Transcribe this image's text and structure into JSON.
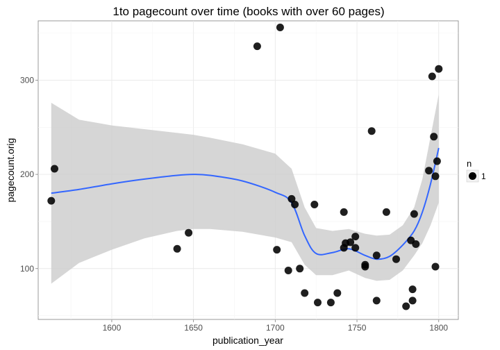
{
  "chart_data": {
    "type": "scatter",
    "title": "1to pagecount over time (books with over 60 pages)",
    "xlabel": "publication_year",
    "ylabel": "pagecount.orig",
    "xlim": [
      1555,
      1812
    ],
    "ylim": [
      46,
      363
    ],
    "x_ticks": [
      1600,
      1650,
      1700,
      1750,
      1800
    ],
    "y_ticks": [
      100,
      200,
      300
    ],
    "grid": true,
    "legend": {
      "title": "n",
      "entries": [
        "1"
      ],
      "position": "right"
    },
    "colors": {
      "point": "#000000",
      "smooth_line": "#3366FF",
      "ribbon": "#cccccc",
      "panel_border": "#7f7f7f",
      "grid": "#ececec"
    },
    "series": [
      {
        "x": [
          1563,
          1565,
          1640,
          1647,
          1689,
          1701,
          1703,
          1708,
          1710,
          1712,
          1715,
          1718,
          1724,
          1726,
          1734,
          1738,
          1742,
          1742,
          1743,
          1746,
          1749,
          1749,
          1755,
          1755,
          1759,
          1762,
          1762,
          1768,
          1774,
          1780,
          1783,
          1784,
          1784,
          1785,
          1786,
          1794,
          1796,
          1797,
          1798,
          1798,
          1799,
          1800
        ],
        "y": [
          172,
          206,
          121,
          138,
          336,
          120,
          356,
          98,
          174,
          168,
          100,
          74,
          168,
          64,
          64,
          74,
          160,
          122,
          127,
          128,
          134,
          122,
          104,
          102,
          246,
          114,
          66,
          160,
          110,
          60,
          130,
          66,
          78,
          158,
          126,
          204,
          304,
          240,
          102,
          198,
          214,
          312
        ]
      }
    ],
    "smooth": {
      "x": [
        1563,
        1580,
        1600,
        1620,
        1640,
        1650,
        1660,
        1680,
        1700,
        1710,
        1718,
        1725,
        1735,
        1745,
        1755,
        1762,
        1770,
        1778,
        1785,
        1790,
        1795,
        1800
      ],
      "y": [
        180,
        184,
        190,
        195,
        199,
        200,
        199,
        193,
        181,
        170,
        135,
        116,
        117,
        121,
        114,
        110,
        113,
        125,
        140,
        160,
        190,
        228
      ],
      "upper": [
        276,
        258,
        252,
        248,
        244,
        242,
        239,
        232,
        222,
        206,
        165,
        143,
        140,
        142,
        137,
        135,
        136,
        146,
        165,
        195,
        240,
        285
      ],
      "lower": [
        84,
        106,
        120,
        132,
        140,
        142,
        142,
        139,
        133,
        128,
        104,
        93,
        93,
        98,
        90,
        87,
        88,
        98,
        114,
        127,
        146,
        170
      ]
    }
  }
}
